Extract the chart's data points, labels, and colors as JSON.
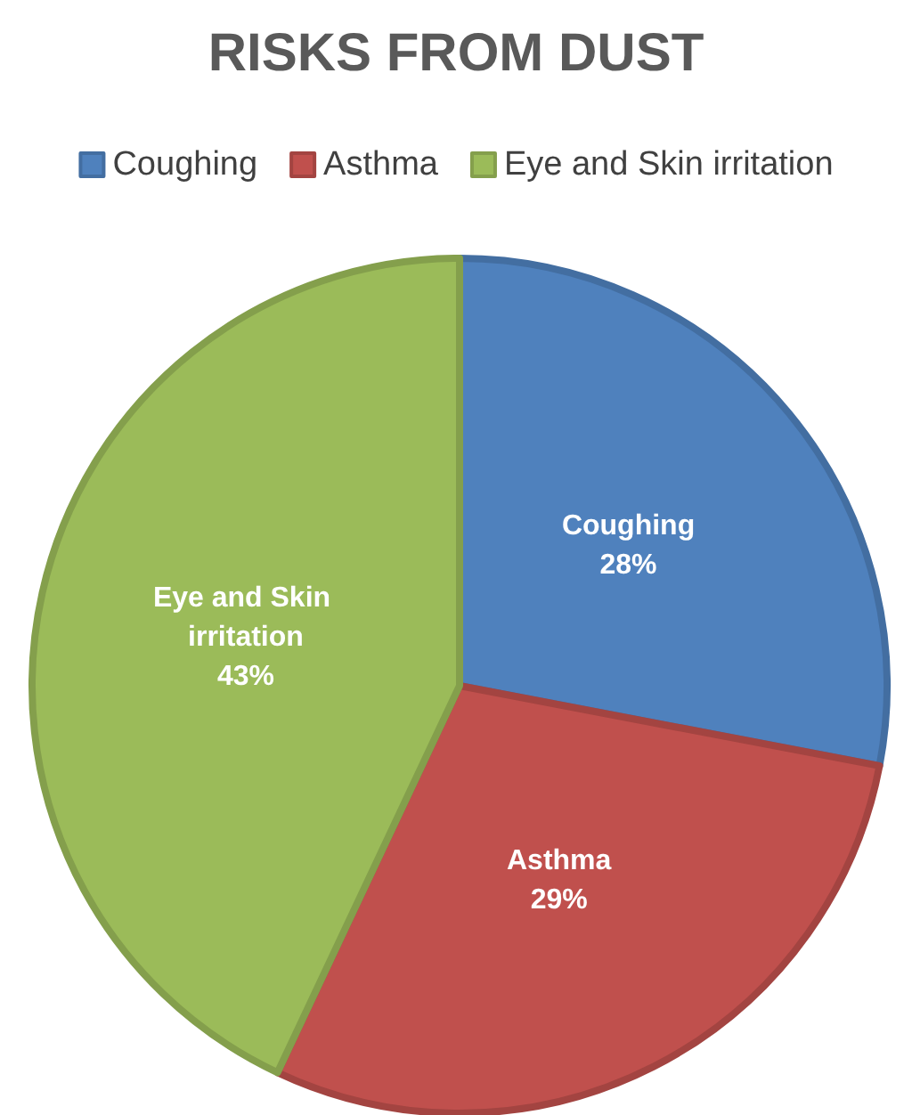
{
  "chart_data": {
    "type": "pie",
    "title": "RISKS FROM DUST",
    "categories": [
      "Coughing",
      "Asthma",
      "Eye and Skin irritation"
    ],
    "values": [
      28,
      29,
      43
    ],
    "value_labels": [
      "28%",
      "29%",
      "43%"
    ],
    "colors": [
      "#4f81bd",
      "#c0504d",
      "#9bbb59"
    ],
    "legend": "top"
  }
}
